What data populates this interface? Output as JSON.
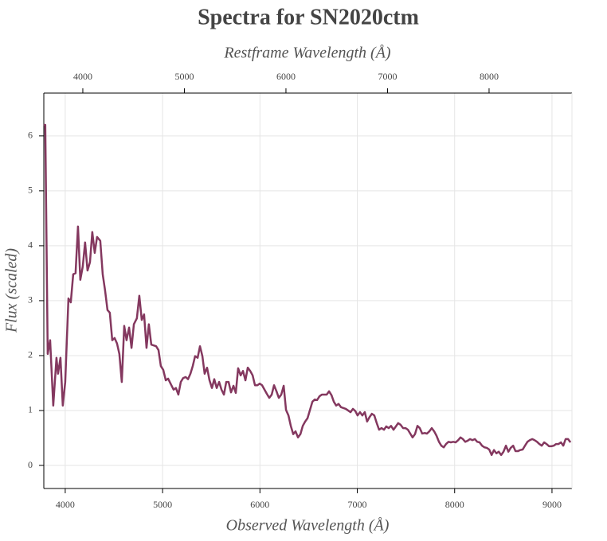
{
  "chart_data": {
    "type": "line",
    "title": "Spectra for SN2020ctm",
    "xlabel": "Observed Wavelength (Å)",
    "ylabel": "Flux (scaled)",
    "x2label": "Restframe Wavelength (Å)",
    "color": "#84385f",
    "grid": true,
    "xlim": [
      3780,
      9205
    ],
    "xticks": [
      4000,
      5000,
      6000,
      7000,
      8000,
      9000
    ],
    "x2lim": [
      3616,
      8816
    ],
    "x2ticks": [
      4000,
      5000,
      6000,
      7000,
      8000
    ],
    "ylim": [
      -0.42,
      6.78
    ],
    "yticks": [
      0,
      1,
      2,
      3,
      4,
      5,
      6
    ],
    "x": [
      3779,
      3795,
      3820,
      3845,
      3877,
      3910,
      3926,
      3951,
      3975,
      4000,
      4033,
      4057,
      4082,
      4106,
      4131,
      4155,
      4180,
      4204,
      4229,
      4254,
      4278,
      4303,
      4327,
      4360,
      4385,
      4409,
      4434,
      4458,
      4483,
      4507,
      4532,
      4556,
      4581,
      4606,
      4630,
      4656,
      4681,
      4705,
      4736,
      4761,
      4786,
      4810,
      4835,
      4859,
      4884,
      4934,
      4958,
      4982,
      5007,
      5033,
      5057,
      5082,
      5113,
      5137,
      5162,
      5187,
      5211,
      5237,
      5261,
      5286,
      5310,
      5334,
      5360,
      5384,
      5409,
      5432,
      5457,
      5482,
      5507,
      5531,
      5556,
      5581,
      5605,
      5630,
      5654,
      5678,
      5703,
      5728,
      5752,
      5776,
      5802,
      5826,
      5851,
      5875,
      5900,
      5925,
      5949,
      5974,
      5998,
      6022,
      6047,
      6072,
      6096,
      6121,
      6145,
      6170,
      6194,
      6219,
      6244,
      6268,
      6293,
      6317,
      6342,
      6366,
      6391,
      6416,
      6440,
      6465,
      6489,
      6514,
      6539,
      6563,
      6587,
      6612,
      6637,
      6686,
      6710,
      6735,
      6759,
      6783,
      6808,
      6833,
      6882,
      6931,
      6955,
      6980,
      7003,
      7028,
      7052,
      7077,
      7101,
      7126,
      7150,
      7175,
      7200,
      7224,
      7249,
      7274,
      7298,
      7323,
      7347,
      7372,
      7396,
      7420,
      7445,
      7470,
      7495,
      7520,
      7544,
      7568,
      7593,
      7618,
      7642,
      7667,
      7691,
      7716,
      7740,
      7765,
      7790,
      7814,
      7839,
      7863,
      7888,
      7912,
      7937,
      7961,
      7986,
      8010,
      8036,
      8060,
      8085,
      8109,
      8134,
      8158,
      8183,
      8208,
      8232,
      8256,
      8281,
      8306,
      8330,
      8355,
      8380,
      8404,
      8429,
      8453,
      8478,
      8502,
      8527,
      8552,
      8576,
      8601,
      8625,
      8650,
      8674,
      8699,
      8723,
      8748,
      8772,
      8797,
      8821,
      8846,
      8870,
      8895,
      8920,
      8944,
      8969,
      8993,
      9018,
      9043,
      9067,
      9092,
      9116,
      9140,
      9165,
      9190
    ],
    "values": [
      6.2,
      6.2,
      2.03,
      2.28,
      1.09,
      1.96,
      1.67,
      1.96,
      1.09,
      1.52,
      3.04,
      2.97,
      3.48,
      3.5,
      4.35,
      3.38,
      3.62,
      4.06,
      3.55,
      3.7,
      4.25,
      3.87,
      4.16,
      4.09,
      3.48,
      3.19,
      2.83,
      2.78,
      2.28,
      2.32,
      2.22,
      2.03,
      1.52,
      2.54,
      2.28,
      2.51,
      2.14,
      2.57,
      2.68,
      3.09,
      2.65,
      2.75,
      2.14,
      2.57,
      2.2,
      2.17,
      2.1,
      1.81,
      1.74,
      1.55,
      1.58,
      1.49,
      1.38,
      1.41,
      1.29,
      1.52,
      1.59,
      1.61,
      1.57,
      1.67,
      1.81,
      1.99,
      1.96,
      2.17,
      1.99,
      1.67,
      1.78,
      1.55,
      1.41,
      1.57,
      1.41,
      1.52,
      1.38,
      1.29,
      1.52,
      1.52,
      1.33,
      1.45,
      1.32,
      1.77,
      1.64,
      1.72,
      1.55,
      1.78,
      1.72,
      1.64,
      1.46,
      1.46,
      1.49,
      1.46,
      1.38,
      1.3,
      1.23,
      1.29,
      1.46,
      1.35,
      1.23,
      1.29,
      1.45,
      1.01,
      0.91,
      0.72,
      0.57,
      0.62,
      0.51,
      0.57,
      0.72,
      0.8,
      0.86,
      1.01,
      1.16,
      1.2,
      1.19,
      1.26,
      1.29,
      1.29,
      1.35,
      1.28,
      1.16,
      1.09,
      1.12,
      1.06,
      1.03,
      0.97,
      1.03,
      0.99,
      0.91,
      0.97,
      0.91,
      0.97,
      0.8,
      0.88,
      0.94,
      0.91,
      0.77,
      0.65,
      0.68,
      0.65,
      0.71,
      0.68,
      0.72,
      0.65,
      0.71,
      0.77,
      0.74,
      0.68,
      0.68,
      0.65,
      0.58,
      0.51,
      0.57,
      0.72,
      0.68,
      0.58,
      0.59,
      0.58,
      0.62,
      0.68,
      0.62,
      0.54,
      0.43,
      0.36,
      0.33,
      0.39,
      0.43,
      0.42,
      0.43,
      0.42,
      0.46,
      0.51,
      0.48,
      0.43,
      0.45,
      0.48,
      0.46,
      0.48,
      0.43,
      0.42,
      0.36,
      0.33,
      0.32,
      0.29,
      0.19,
      0.28,
      0.22,
      0.25,
      0.19,
      0.25,
      0.36,
      0.25,
      0.32,
      0.36,
      0.26,
      0.26,
      0.28,
      0.29,
      0.36,
      0.43,
      0.46,
      0.48,
      0.46,
      0.43,
      0.39,
      0.36,
      0.42,
      0.39,
      0.35,
      0.35,
      0.36,
      0.39,
      0.39,
      0.42,
      0.36,
      0.48,
      0.48,
      0.42
    ]
  }
}
